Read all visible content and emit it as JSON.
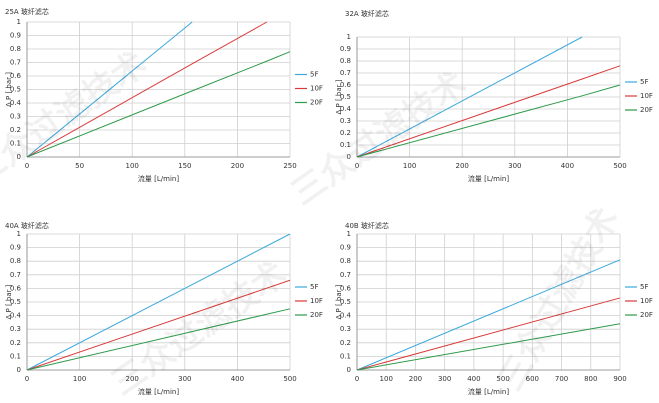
{
  "watermark": "三众过滤技术",
  "chart_data": [
    {
      "type": "line",
      "title": "25A 玻纤滤芯",
      "x_label": "流量 [L/min]",
      "y_label": "Δ P [ bar ]",
      "x": [
        0,
        157,
        228,
        250
      ],
      "series": [
        {
          "name": "5F",
          "color": "#3aa8dc",
          "values": [
            0,
            1,
            null,
            null
          ]
        },
        {
          "name": "10F",
          "color": "#d93a3a",
          "values": [
            0,
            0.69,
            1,
            null
          ]
        },
        {
          "name": "20F",
          "color": "#2e9a4a",
          "values": [
            0,
            0.49,
            0.71,
            0.78
          ]
        }
      ],
      "xlim": [
        0,
        250
      ],
      "xticks": [
        0,
        50,
        100,
        150,
        200,
        250
      ],
      "ylim": [
        0,
        1
      ],
      "yticks": [
        0,
        0.1,
        0.2,
        0.3,
        0.4,
        0.5,
        0.6,
        0.7,
        0.8,
        0.9,
        1
      ],
      "grid": true,
      "legend": "right"
    },
    {
      "type": "line",
      "title": "32A 玻纤滤芯",
      "x_label": "流量 [L/min]",
      "y_label": "Δ P [ bar ]",
      "x": [
        0,
        428,
        500
      ],
      "series": [
        {
          "name": "5F",
          "color": "#3aa8dc",
          "values": [
            0,
            1,
            null
          ]
        },
        {
          "name": "10F",
          "color": "#d93a3a",
          "values": [
            0,
            0.65,
            0.76
          ]
        },
        {
          "name": "20F",
          "color": "#2e9a4a",
          "values": [
            0,
            0.51,
            0.6
          ]
        }
      ],
      "xlim": [
        0,
        500
      ],
      "xticks": [
        0,
        100,
        200,
        300,
        400,
        500
      ],
      "ylim": [
        0,
        1
      ],
      "yticks": [
        0,
        0.1,
        0.2,
        0.3,
        0.4,
        0.5,
        0.6,
        0.7,
        0.8,
        0.9,
        1
      ],
      "grid": true,
      "legend": "right"
    },
    {
      "type": "line",
      "title": "40A 玻纤滤芯",
      "x_label": "流量 [L/min]",
      "y_label": "Δ P [ bar ]",
      "x": [
        0,
        500
      ],
      "series": [
        {
          "name": "5F",
          "color": "#3aa8dc",
          "values": [
            0,
            1
          ]
        },
        {
          "name": "10F",
          "color": "#d93a3a",
          "values": [
            0,
            0.66
          ]
        },
        {
          "name": "20F",
          "color": "#2e9a4a",
          "values": [
            0,
            0.45
          ]
        }
      ],
      "xlim": [
        0,
        500
      ],
      "xticks": [
        0,
        100,
        200,
        300,
        400,
        500
      ],
      "ylim": [
        0,
        1
      ],
      "yticks": [
        0,
        0.1,
        0.2,
        0.3,
        0.4,
        0.5,
        0.6,
        0.7,
        0.8,
        0.9,
        1
      ],
      "grid": true,
      "legend": "right"
    },
    {
      "type": "line",
      "title": "40B 玻纤滤芯",
      "x_label": "流量 [L/min]",
      "y_label": "Δ P [ bar ]",
      "x": [
        0,
        900
      ],
      "series": [
        {
          "name": "5F",
          "color": "#3aa8dc",
          "values": [
            0,
            0.81
          ]
        },
        {
          "name": "10F",
          "color": "#d93a3a",
          "values": [
            0,
            0.53
          ]
        },
        {
          "name": "20F",
          "color": "#2e9a4a",
          "values": [
            0,
            0.34
          ]
        }
      ],
      "xlim": [
        0,
        900
      ],
      "xticks": [
        0,
        100,
        200,
        300,
        400,
        500,
        600,
        700,
        800,
        900
      ],
      "ylim": [
        0,
        1
      ],
      "yticks": [
        0,
        0.1,
        0.2,
        0.3,
        0.4,
        0.5,
        0.6,
        0.7,
        0.8,
        0.9,
        1
      ],
      "grid": true,
      "legend": "right"
    }
  ]
}
